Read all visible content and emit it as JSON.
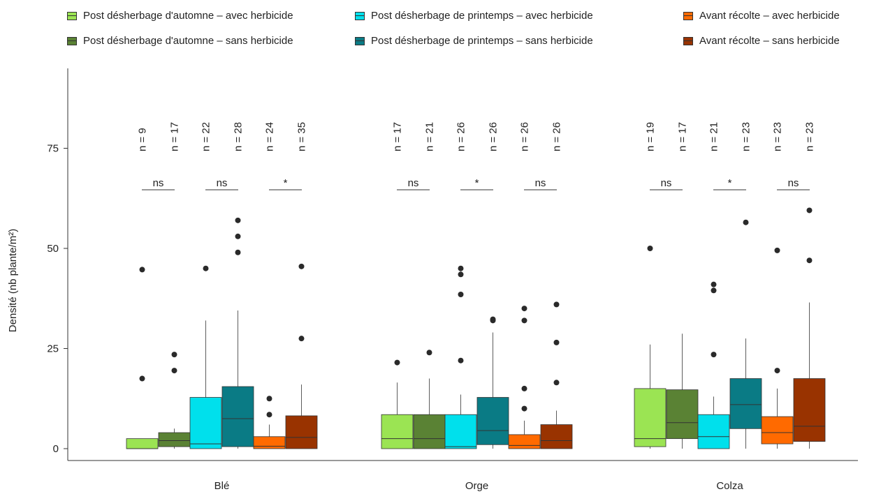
{
  "legend": [
    {
      "label": "Post désherbage d'automne – avec herbicide",
      "color": "#9be453"
    },
    {
      "label": "Post désherbage d'automne – sans herbicide",
      "color": "#5a8234"
    },
    {
      "label": "Post désherbage de printemps – avec herbicide",
      "color": "#00e0ec"
    },
    {
      "label": "Post désherbage de printemps – sans herbicide",
      "color": "#0a7b85"
    },
    {
      "label": "Avant récolte – avec herbicide",
      "color": "#ff6a00"
    },
    {
      "label": "Avant récolte – sans herbicide",
      "color": "#993300"
    }
  ],
  "chart_data": {
    "type": "box",
    "ylabel": "Densité (nb plante/m²)",
    "ylim": [
      0,
      95
    ],
    "yticks": [
      0,
      25,
      50,
      75
    ],
    "categories": [
      "Blé",
      "Orge",
      "Colza"
    ],
    "groups": [
      {
        "category": "Blé",
        "boxes": [
          {
            "series": 0,
            "n": "n = 9",
            "min": 0,
            "q1": 0,
            "median": 0,
            "q3": 2.5,
            "max": 2.5,
            "outliers": [
              17.5,
              44.7
            ]
          },
          {
            "series": 1,
            "n": "n = 17",
            "min": 0,
            "q1": 0.5,
            "median": 2,
            "q3": 4,
            "max": 5,
            "outliers": [
              19.5,
              23.5
            ]
          },
          {
            "series": 2,
            "n": "n = 22",
            "min": 0,
            "q1": 0,
            "median": 1.2,
            "q3": 12.8,
            "max": 32,
            "outliers": [
              45
            ]
          },
          {
            "series": 3,
            "n": "n = 28",
            "min": 0,
            "q1": 0.5,
            "median": 7.5,
            "q3": 15.5,
            "max": 34.5,
            "outliers": [
              49,
              53,
              57
            ]
          },
          {
            "series": 4,
            "n": "n = 24",
            "min": 0,
            "q1": 0,
            "median": 0.6,
            "q3": 3,
            "max": 6,
            "outliers": [
              8.5,
              12.5
            ]
          },
          {
            "series": 5,
            "n": "n = 35",
            "min": 0,
            "q1": 0,
            "median": 2.8,
            "q3": 8.2,
            "max": 16,
            "outliers": [
              27.5,
              45.5
            ]
          }
        ],
        "tests": [
          "ns",
          "ns",
          "*"
        ]
      },
      {
        "category": "Orge",
        "boxes": [
          {
            "series": 0,
            "n": "n = 17",
            "min": 0,
            "q1": 0,
            "median": 2.5,
            "q3": 8.5,
            "max": 16.5,
            "outliers": [
              21.5
            ]
          },
          {
            "series": 1,
            "n": "n = 21",
            "min": 0,
            "q1": 0,
            "median": 2.5,
            "q3": 8.5,
            "max": 17.5,
            "outliers": [
              24
            ]
          },
          {
            "series": 2,
            "n": "n = 26",
            "min": 0,
            "q1": 0,
            "median": 0.5,
            "q3": 8.5,
            "max": 13.5,
            "outliers": [
              22,
              38.5,
              43.5,
              45
            ]
          },
          {
            "series": 3,
            "n": "n = 26",
            "min": 0,
            "q1": 1,
            "median": 4.5,
            "q3": 12.8,
            "max": 29,
            "outliers": [
              32,
              32.3
            ]
          },
          {
            "series": 4,
            "n": "n = 26",
            "min": 0,
            "q1": 0,
            "median": 0.8,
            "q3": 3.5,
            "max": 7,
            "outliers": [
              10,
              15,
              32,
              35
            ]
          },
          {
            "series": 5,
            "n": "n = 26",
            "min": 0,
            "q1": 0,
            "median": 2,
            "q3": 6,
            "max": 9.5,
            "outliers": [
              16.5,
              26.5,
              36
            ]
          }
        ],
        "tests": [
          "ns",
          "*",
          "ns"
        ]
      },
      {
        "category": "Colza",
        "boxes": [
          {
            "series": 0,
            "n": "n = 19",
            "min": 0,
            "q1": 0.5,
            "median": 2.5,
            "q3": 15,
            "max": 26,
            "outliers": [
              50
            ]
          },
          {
            "series": 1,
            "n": "n = 17",
            "min": 0,
            "q1": 2.5,
            "median": 6.5,
            "q3": 14.7,
            "max": 28.7,
            "outliers": []
          },
          {
            "series": 2,
            "n": "n = 21",
            "min": 0,
            "q1": 0,
            "median": 3,
            "q3": 8.5,
            "max": 13,
            "outliers": [
              23.5,
              39.5,
              41
            ]
          },
          {
            "series": 3,
            "n": "n = 23",
            "min": 0,
            "q1": 5,
            "median": 11,
            "q3": 17.5,
            "max": 27.5,
            "outliers": [
              56.5
            ]
          },
          {
            "series": 4,
            "n": "n = 23",
            "min": 0,
            "q1": 1.2,
            "median": 4,
            "q3": 8,
            "max": 15,
            "outliers": [
              19.5,
              49.5
            ]
          },
          {
            "series": 5,
            "n": "n = 23",
            "min": 0,
            "q1": 1.8,
            "median": 5.6,
            "q3": 17.5,
            "max": 36.5,
            "outliers": [
              47,
              59.5
            ]
          }
        ],
        "tests": [
          "ns",
          "*",
          "ns"
        ]
      }
    ]
  }
}
